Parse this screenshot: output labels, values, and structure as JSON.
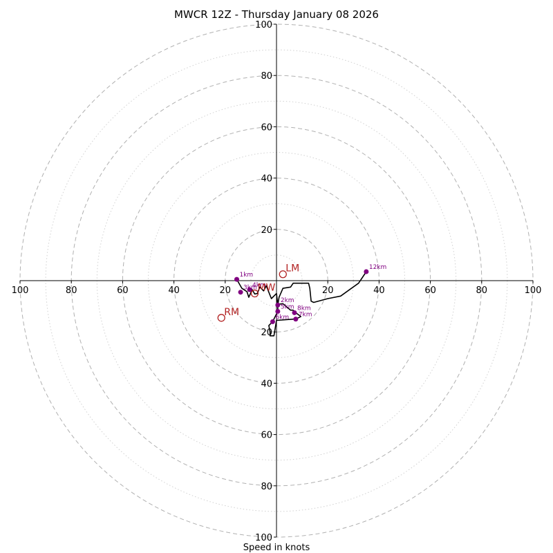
{
  "chart_data": {
    "type": "hodograph",
    "title": "MWCR 12Z - Thursday January 08 2026",
    "xlabel": "Speed in knots",
    "rlim": [
      0,
      100
    ],
    "major_rings": [
      20,
      40,
      60,
      80,
      100
    ],
    "minor_rings": [
      10,
      30,
      50,
      70,
      90
    ],
    "x_ticks": [
      {
        "value": -100,
        "label": "100"
      },
      {
        "value": -80,
        "label": "80"
      },
      {
        "value": -60,
        "label": "60"
      },
      {
        "value": -40,
        "label": "40"
      },
      {
        "value": -20,
        "label": "20"
      },
      {
        "value": 20,
        "label": "20"
      },
      {
        "value": 40,
        "label": "40"
      },
      {
        "value": 60,
        "label": "60"
      },
      {
        "value": 80,
        "label": "80"
      },
      {
        "value": 100,
        "label": "100"
      }
    ],
    "y_ticks": [
      {
        "value": 100,
        "label": "100"
      },
      {
        "value": 80,
        "label": "80"
      },
      {
        "value": 60,
        "label": "60"
      },
      {
        "value": 40,
        "label": "40"
      },
      {
        "value": 20,
        "label": "20"
      },
      {
        "value": -20,
        "label": "20"
      },
      {
        "value": -40,
        "label": "40"
      },
      {
        "value": -60,
        "label": "60"
      },
      {
        "value": -80,
        "label": "80"
      },
      {
        "value": -100,
        "label": "100"
      }
    ],
    "hodograph_trace_u_v_knots": [
      [
        -15.5,
        0.5
      ],
      [
        -13.5,
        -3
      ],
      [
        -11.5,
        -4.3
      ],
      [
        -10.8,
        -6.5
      ],
      [
        -9.5,
        -3.5
      ],
      [
        -8.5,
        -5.2
      ],
      [
        -7.5,
        -5
      ],
      [
        -6.5,
        -2.5
      ],
      [
        -5,
        -4
      ],
      [
        -4,
        -2
      ],
      [
        -2,
        -7
      ],
      [
        0,
        -5
      ],
      [
        0.5,
        -9.5
      ],
      [
        0.5,
        -12
      ],
      [
        -0.5,
        -14
      ],
      [
        -1.5,
        -16
      ],
      [
        -3,
        -17.5
      ],
      [
        -2.5,
        -20
      ],
      [
        -2.5,
        -21.5
      ],
      [
        -1,
        -21.5
      ],
      [
        0,
        -15.5
      ],
      [
        7,
        -15
      ],
      [
        8.5,
        -14.5
      ],
      [
        9.5,
        -14
      ],
      [
        7.5,
        -12.5
      ],
      [
        6.5,
        -11.5
      ],
      [
        5.5,
        -11.5
      ],
      [
        2.5,
        -9
      ],
      [
        0.5,
        -9.2
      ],
      [
        0.5,
        -9.5
      ],
      [
        1,
        -6.5
      ],
      [
        2.5,
        -3
      ],
      [
        5.5,
        -2.5
      ],
      [
        6.5,
        -1
      ],
      [
        12.5,
        -1
      ],
      [
        13,
        -3
      ],
      [
        13.5,
        -8
      ],
      [
        14.5,
        -8.5
      ],
      [
        20,
        -7
      ],
      [
        25,
        -6
      ],
      [
        32,
        -1
      ],
      [
        35,
        3.5
      ]
    ],
    "height_markers": [
      {
        "label": "1km",
        "u": -15.5,
        "v": 0.5
      },
      {
        "label": "2km",
        "u": 0.5,
        "v": -9.5
      },
      {
        "label": "3km",
        "u": -14,
        "v": -4.5
      },
      {
        "label": "4km",
        "u": -10.5,
        "v": -3.5
      },
      {
        "label": "5km",
        "u": 0.5,
        "v": -12
      },
      {
        "label": "6km",
        "u": -1.5,
        "v": -16
      },
      {
        "label": "7km",
        "u": 7.5,
        "v": -15
      },
      {
        "label": "8km",
        "u": 7,
        "v": -12.5
      },
      {
        "label": "12km",
        "u": 35,
        "v": 3.5
      }
    ],
    "storm_motion_markers": [
      {
        "label": "LM",
        "u": 2.5,
        "v": 2.5
      },
      {
        "label": "RM",
        "u": -21.5,
        "v": -14.5
      },
      {
        "label": "MW",
        "u": -8.5,
        "v": -5
      }
    ],
    "colors": {
      "trace": "#000000",
      "height_marker": "#800080",
      "storm_marker": "#b22222",
      "major_ring": "#b0b0b0",
      "minor_ring": "#d0d0d0"
    }
  }
}
